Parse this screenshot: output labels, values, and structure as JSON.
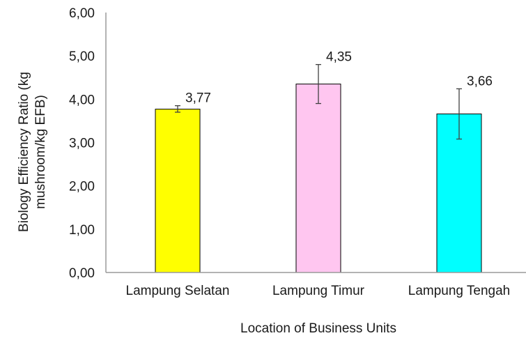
{
  "chart_data": {
    "type": "bar",
    "categories": [
      "Lampung Selatan",
      "Lampung Timur",
      "Lampung Tengah"
    ],
    "values": [
      3.77,
      4.35,
      3.66
    ],
    "value_labels": [
      "3,77",
      "4,35",
      "3,66"
    ],
    "error_low": [
      3.7,
      3.9,
      3.08
    ],
    "error_high": [
      3.85,
      4.8,
      4.24
    ],
    "bar_colors": [
      "#ffff00",
      "#ffc6f0",
      "#00ffff"
    ],
    "title": "",
    "xlabel": "Location of Business Units",
    "ylabel_line1": "Biology Efficiency Ratio (kg",
    "ylabel_line2": "mushroom/kg EFB)",
    "ylim": [
      0,
      6
    ],
    "yticks": [
      0,
      1,
      2,
      3,
      4,
      5,
      6
    ],
    "ytick_labels": [
      "0,00",
      "1,00",
      "2,00",
      "3,00",
      "4,00",
      "5,00",
      "6,00"
    ],
    "grid": false,
    "legend": "none"
  }
}
